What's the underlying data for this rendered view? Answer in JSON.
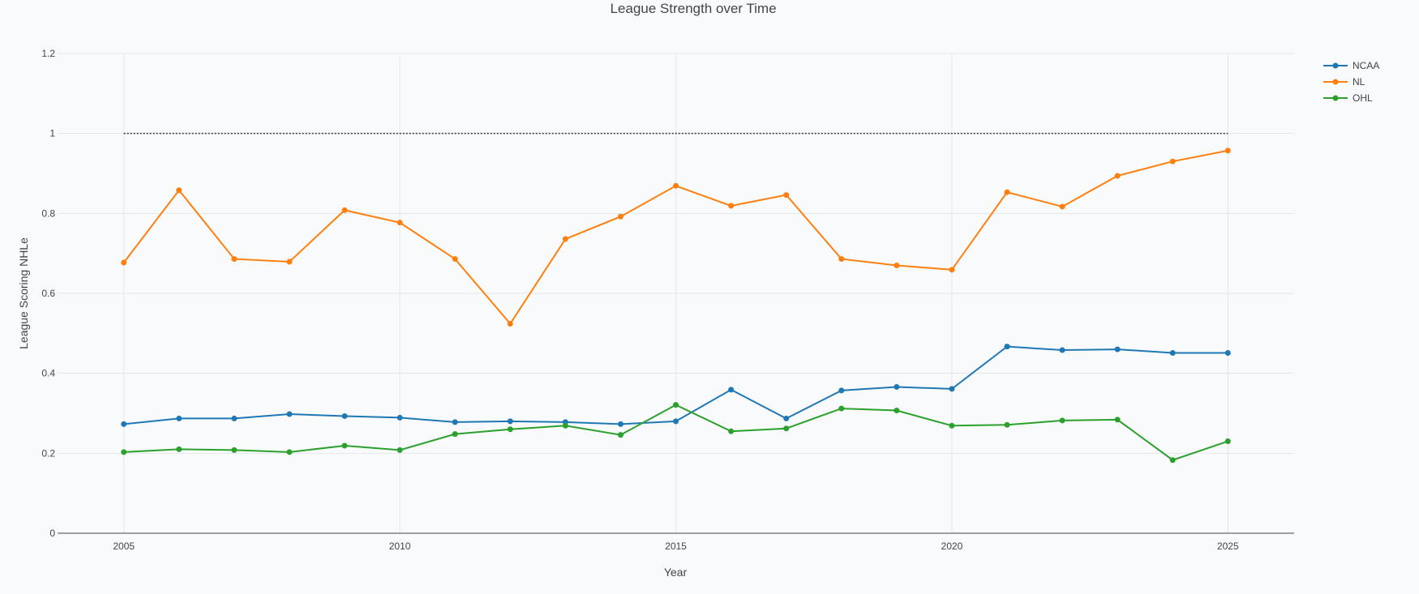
{
  "chart_data": {
    "type": "line",
    "title": "League Strength over Time",
    "xlabel": "Year",
    "ylabel": "League Scoring NHLe",
    "xlim": [
      2003.8,
      2026.2
    ],
    "ylim": [
      0,
      1.2
    ],
    "xticks": [
      2005,
      2010,
      2015,
      2020,
      2025
    ],
    "yticks": [
      0,
      0.2,
      0.4,
      0.6,
      0.8,
      1,
      1.2
    ],
    "grid": true,
    "legend": "top-right",
    "reference_line": {
      "y": 1,
      "style": "dotted",
      "color": "#333333",
      "x": [
        2005,
        2025
      ]
    },
    "x": [
      2005,
      2006,
      2007,
      2008,
      2009,
      2010,
      2011,
      2012,
      2013,
      2014,
      2015,
      2016,
      2017,
      2018,
      2019,
      2020,
      2021,
      2022,
      2023,
      2024,
      2025
    ],
    "series": [
      {
        "name": "NCAA",
        "color": "#1f77b4",
        "values": [
          0.273,
          0.287,
          0.287,
          0.298,
          0.293,
          0.289,
          0.278,
          0.28,
          0.278,
          0.273,
          0.28,
          0.359,
          0.287,
          0.357,
          0.366,
          0.361,
          0.467,
          0.458,
          0.46,
          0.451,
          0.451
        ]
      },
      {
        "name": "NL",
        "color": "#ff7f0e",
        "values": [
          0.677,
          0.858,
          0.686,
          0.679,
          0.808,
          0.777,
          0.686,
          0.524,
          0.736,
          0.792,
          0.869,
          0.819,
          0.846,
          0.686,
          0.67,
          0.659,
          0.853,
          0.817,
          0.894,
          0.93,
          0.957
        ]
      },
      {
        "name": "OHL",
        "color": "#2ca02c",
        "values": [
          0.203,
          0.21,
          0.208,
          0.203,
          0.219,
          0.208,
          0.248,
          0.26,
          0.269,
          0.246,
          0.321,
          0.255,
          0.262,
          0.312,
          0.307,
          0.269,
          0.271,
          0.282,
          0.284,
          0.183,
          0.23
        ]
      }
    ]
  }
}
